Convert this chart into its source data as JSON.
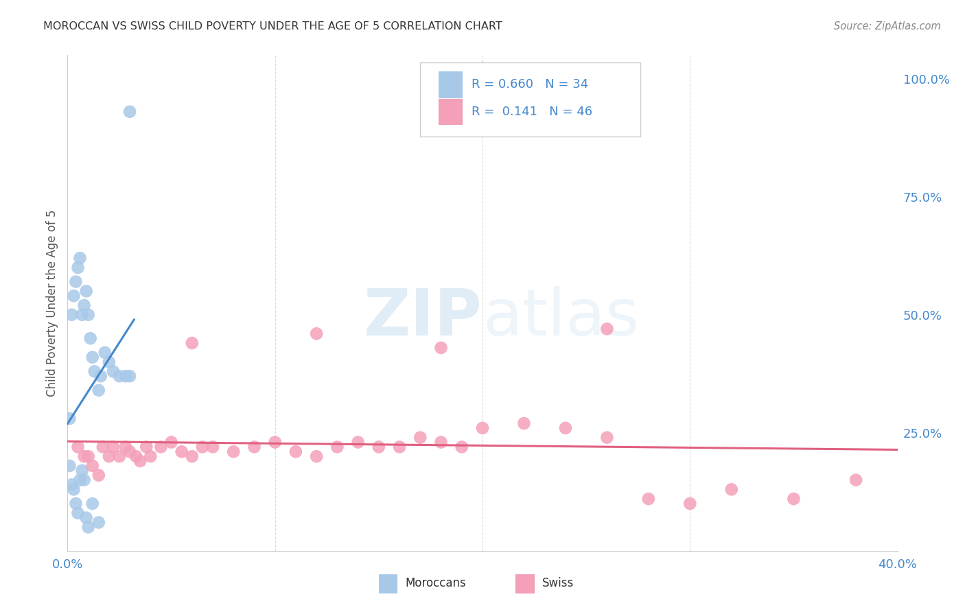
{
  "title": "MOROCCAN VS SWISS CHILD POVERTY UNDER THE AGE OF 5 CORRELATION CHART",
  "source": "Source: ZipAtlas.com",
  "ylabel": "Child Poverty Under the Age of 5",
  "right_yticks": [
    "100.0%",
    "75.0%",
    "50.0%",
    "25.0%"
  ],
  "right_ytick_vals": [
    1.0,
    0.75,
    0.5,
    0.25
  ],
  "moroccan_R": 0.66,
  "moroccan_N": 34,
  "swiss_R": 0.141,
  "swiss_N": 46,
  "moroccan_color": "#a8c8e8",
  "swiss_color": "#f4a0b8",
  "moroccan_line_color": "#4488cc",
  "swiss_line_color": "#e06080",
  "background_color": "#ffffff",
  "grid_color": "#cccccc",
  "moroccan_x": [
    0.001,
    0.002,
    0.003,
    0.004,
    0.005,
    0.006,
    0.007,
    0.008,
    0.009,
    0.01,
    0.011,
    0.012,
    0.013,
    0.015,
    0.016,
    0.018,
    0.02,
    0.022,
    0.025,
    0.028,
    0.03,
    0.001,
    0.002,
    0.003,
    0.004,
    0.005,
    0.006,
    0.007,
    0.008,
    0.009,
    0.01,
    0.012,
    0.015,
    0.03
  ],
  "moroccan_y": [
    0.28,
    0.5,
    0.54,
    0.57,
    0.6,
    0.62,
    0.5,
    0.52,
    0.55,
    0.5,
    0.45,
    0.41,
    0.38,
    0.34,
    0.37,
    0.42,
    0.4,
    0.38,
    0.37,
    0.37,
    0.37,
    0.18,
    0.14,
    0.13,
    0.1,
    0.08,
    0.15,
    0.17,
    0.15,
    0.07,
    0.05,
    0.1,
    0.06,
    0.93
  ],
  "swiss_x": [
    0.005,
    0.008,
    0.01,
    0.012,
    0.015,
    0.017,
    0.02,
    0.022,
    0.025,
    0.028,
    0.03,
    0.033,
    0.035,
    0.038,
    0.04,
    0.045,
    0.05,
    0.055,
    0.06,
    0.065,
    0.07,
    0.08,
    0.09,
    0.1,
    0.11,
    0.12,
    0.13,
    0.14,
    0.15,
    0.16,
    0.17,
    0.18,
    0.19,
    0.2,
    0.22,
    0.24,
    0.26,
    0.28,
    0.3,
    0.32,
    0.35,
    0.38,
    0.06,
    0.12,
    0.18,
    0.26
  ],
  "swiss_y": [
    0.22,
    0.2,
    0.2,
    0.18,
    0.16,
    0.22,
    0.2,
    0.22,
    0.2,
    0.22,
    0.21,
    0.2,
    0.19,
    0.22,
    0.2,
    0.22,
    0.23,
    0.21,
    0.2,
    0.22,
    0.22,
    0.21,
    0.22,
    0.23,
    0.21,
    0.2,
    0.22,
    0.23,
    0.22,
    0.22,
    0.24,
    0.23,
    0.22,
    0.26,
    0.27,
    0.26,
    0.24,
    0.11,
    0.1,
    0.13,
    0.11,
    0.15,
    0.44,
    0.46,
    0.43,
    0.47
  ],
  "xlim": [
    0.0,
    0.4
  ],
  "ylim": [
    0.0,
    1.05
  ]
}
